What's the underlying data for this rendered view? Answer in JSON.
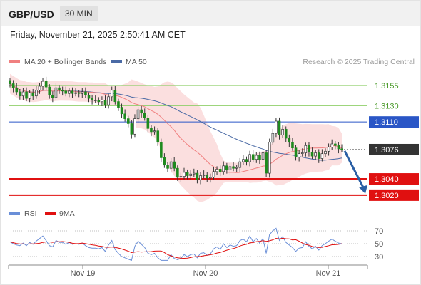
{
  "header": {
    "symbol": "GBP/USD",
    "timeframe": "30 MIN"
  },
  "timestamp": "Friday, November 21, 2025 2:50:41 AM CET",
  "legend": {
    "ma20": "MA 20 + Bollinger Bands",
    "ma50": "MA 50",
    "credit": "Research © 2025 Trading Central",
    "rsi": "RSI",
    "rsi_ma": "9MA"
  },
  "colors": {
    "candle_up": "#ffffff",
    "candle_down": "#1e8a1e",
    "wick": "#333333",
    "ma20": "#f08080",
    "bollinger_fill": "#fbdcdc",
    "ma50": "#4a6aa5",
    "resistance": "#8fcf6a",
    "pivot": "#2a56c6",
    "support": "#e01010",
    "last_price_bg": "#333333",
    "rsi": "#6a8fd8",
    "rsi_ma": "#e01010",
    "arrow": "#2a5fa5"
  },
  "chart_data": {
    "type": "candlestick",
    "x_labels": [
      "Nov 19",
      "Nov 20",
      "Nov 21"
    ],
    "ylim": [
      1.3005,
      1.3175
    ],
    "last_price": "1.3076",
    "levels": [
      {
        "value": 1.3155,
        "label": "1.3155",
        "kind": "resistance"
      },
      {
        "value": 1.313,
        "label": "1.3130",
        "kind": "resistance"
      },
      {
        "value": 1.311,
        "label": "1.3110",
        "kind": "pivot"
      },
      {
        "value": 1.304,
        "label": "1.3040",
        "kind": "support"
      },
      {
        "value": 1.302,
        "label": "1.3020",
        "kind": "support"
      }
    ],
    "close": [
      1.3157,
      1.3152,
      1.3147,
      1.3142,
      1.3147,
      1.3139,
      1.3146,
      1.3142,
      1.3149,
      1.3154,
      1.316,
      1.3153,
      1.3143,
      1.314,
      1.3152,
      1.3149,
      1.3148,
      1.3145,
      1.3148,
      1.3145,
      1.3146,
      1.3145,
      1.3147,
      1.3143,
      1.3139,
      1.3137,
      1.3137,
      1.3135,
      1.3137,
      1.3131,
      1.3141,
      1.3149,
      1.3135,
      1.3128,
      1.312,
      1.3114,
      1.3108,
      1.3095,
      1.3114,
      1.3125,
      1.3121,
      1.3115,
      1.3102,
      1.3098,
      1.3099,
      1.3085,
      1.3066,
      1.3057,
      1.3053,
      1.3061,
      1.3053,
      1.3042,
      1.3043,
      1.3048,
      1.3044,
      1.3046,
      1.3047,
      1.3039,
      1.3044,
      1.3045,
      1.3041,
      1.3042,
      1.3049,
      1.3052,
      1.3049,
      1.3056,
      1.3051,
      1.3055,
      1.3053,
      1.3054,
      1.3061,
      1.3064,
      1.3061,
      1.307,
      1.3064,
      1.3069,
      1.3064,
      1.3072,
      1.3047,
      1.3085,
      1.3096,
      1.3111,
      1.3094,
      1.3101,
      1.309,
      1.3085,
      1.3078,
      1.3067,
      1.3071,
      1.3072,
      1.3081,
      1.3073,
      1.3068,
      1.3072,
      1.3065,
      1.3071,
      1.3074,
      1.3079,
      1.3083,
      1.3081,
      1.3077,
      1.3076
    ],
    "rsi": [
      53,
      50,
      48,
      47,
      51,
      47,
      52,
      49,
      54,
      58,
      62,
      55,
      47,
      45,
      55,
      52,
      52,
      49,
      52,
      49,
      50,
      49,
      51,
      47,
      44,
      43,
      43,
      42,
      44,
      38,
      48,
      55,
      41,
      35,
      30,
      28,
      26,
      24,
      46,
      54,
      49,
      44,
      35,
      33,
      35,
      28,
      24,
      24,
      24,
      33,
      27,
      25,
      27,
      33,
      30,
      33,
      34,
      28,
      35,
      36,
      32,
      34,
      42,
      45,
      41,
      50,
      44,
      48,
      46,
      47,
      55,
      57,
      53,
      62,
      53,
      58,
      51,
      58,
      35,
      64,
      70,
      74,
      55,
      61,
      52,
      48,
      44,
      38,
      43,
      44,
      53,
      46,
      42,
      46,
      40,
      47,
      50,
      54,
      57,
      54,
      51,
      50
    ],
    "rsi_ticks": [
      "70",
      "50",
      "30"
    ]
  }
}
